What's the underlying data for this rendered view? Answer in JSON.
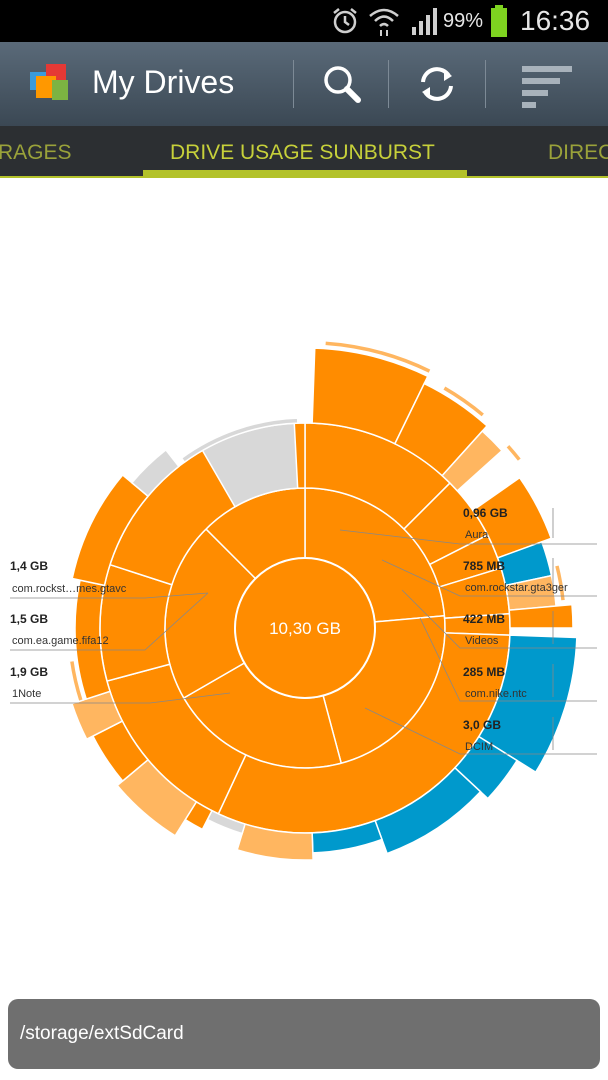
{
  "status_bar": {
    "battery_percent": "99%",
    "time": "16:36",
    "icons": [
      "alarm-icon",
      "wifi-icon",
      "signal-icon",
      "battery-icon"
    ]
  },
  "action_bar": {
    "title": "My Drives",
    "icons": [
      "search-icon",
      "refresh-icon",
      "sort-icon"
    ]
  },
  "tabs": [
    {
      "label": "RAGES"
    },
    {
      "label": "DRIVE USAGE SUNBURST"
    },
    {
      "label": "DIREC"
    }
  ],
  "colors": {
    "accent": "#b3c22a",
    "orange": "#ff8c00",
    "light_orange": "#ffb660",
    "blue": "#0099cc",
    "gray": "#d8d8d8"
  },
  "sunburst": {
    "center_label": "10,30 GB",
    "callouts": [
      {
        "value": "1,4 GB",
        "name": "com.rockst…mes.gtavc"
      },
      {
        "value": "1,5 GB",
        "name": "com.ea.game.fifa12"
      },
      {
        "value": "1,9 GB",
        "name": "1Note"
      },
      {
        "value": "0,96 GB",
        "name": "Aura"
      },
      {
        "value": "785 MB",
        "name": "com.rockstar.gta3ger"
      },
      {
        "value": "422 MB",
        "name": "Videos"
      },
      {
        "value": "285 MB",
        "name": "com.nike.ntc"
      },
      {
        "value": "3,0 GB",
        "name": "DCIM"
      }
    ]
  },
  "path_bar": {
    "path": "/storage/extSdCard"
  }
}
